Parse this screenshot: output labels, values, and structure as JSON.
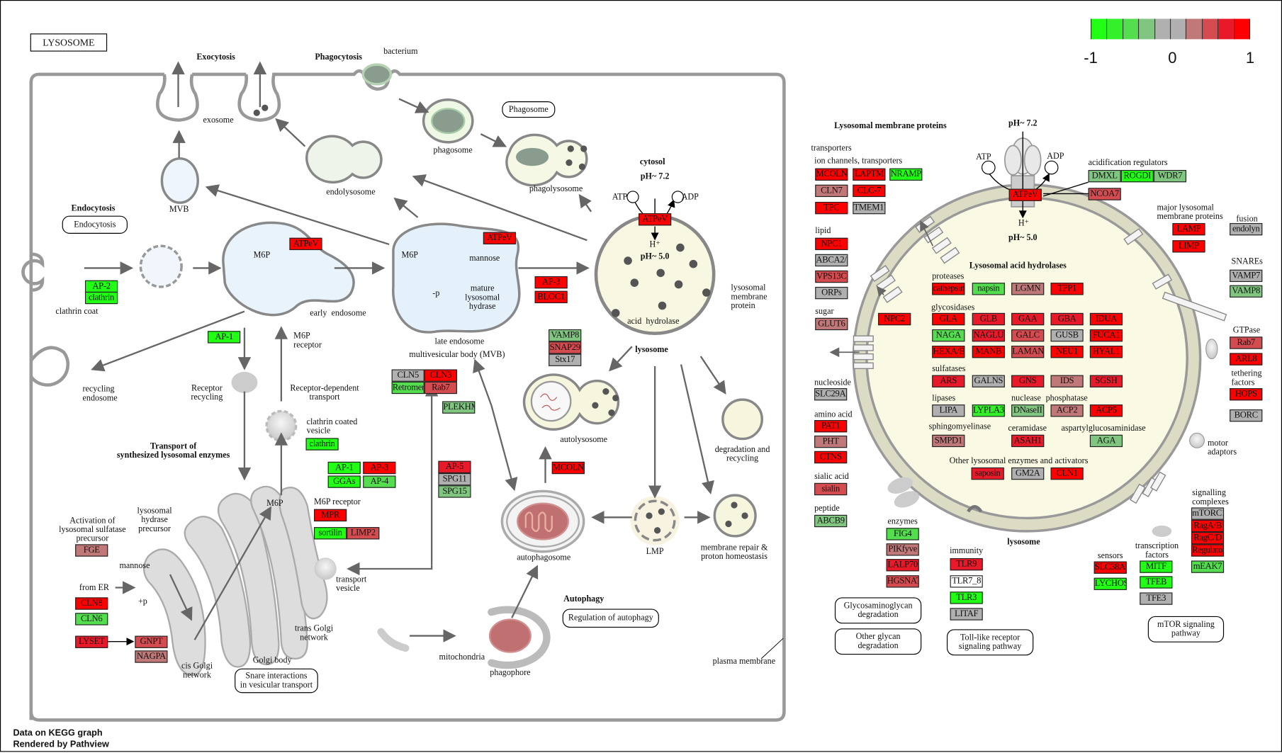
{
  "title": "LYSOSOME",
  "legend": {
    "ticks": [
      "-1",
      "0",
      "1"
    ],
    "colors": [
      "#20ff14",
      "#33f02a",
      "#55dd50",
      "#80c680",
      "#b0b0b0",
      "#b0b0b0",
      "#c07878",
      "#d44b50",
      "#e81a2a",
      "#ff0000"
    ]
  },
  "footer": [
    "Data on KEGG graph",
    "Rendered by Pathview"
  ],
  "pathway_links": [
    "Endocytosis",
    "Phagosome",
    "Regulation of autophagy",
    "Snare interactions\nin vesicular transport",
    "Glycosaminoglycan\ndegradation",
    "Other glycan\ndegradation",
    "Toll-like receptor\nsignaling pathway",
    "mTOR signaling\npathway"
  ],
  "genes": [
    {
      "label": "AP-2",
      "color": "#20ff14"
    },
    {
      "label": "clathrin",
      "color": "#20ff14"
    },
    {
      "label": "ATPeV",
      "color": "#ff0000"
    },
    {
      "label": "AP-1",
      "color": "#20ff14"
    },
    {
      "label": "ATPeV",
      "color": "#ff0000"
    },
    {
      "label": "AP-3",
      "color": "#ff0000"
    },
    {
      "label": "BLOC1",
      "color": "#ff0000"
    },
    {
      "label": "ATPeV",
      "color": "#ff0000"
    },
    {
      "label": "VAMP8",
      "color": "#80c680"
    },
    {
      "label": "SNAP29",
      "color": "#d44b50"
    },
    {
      "label": "Stx17",
      "color": "#b0b0b0"
    },
    {
      "label": "CLN5",
      "color": "#b0b0b0"
    },
    {
      "label": "CLN3",
      "color": "#ff0000"
    },
    {
      "label": "Retromer",
      "color": "#55dd50"
    },
    {
      "label": "Rab7",
      "color": "#d44b50"
    },
    {
      "label": "PLEKHM1",
      "color": "#80c680"
    },
    {
      "label": "clathrin",
      "color": "#20ff14"
    },
    {
      "label": "AP-1",
      "color": "#20ff14"
    },
    {
      "label": "AP-3",
      "color": "#ff0000"
    },
    {
      "label": "GGAs",
      "color": "#20ff14"
    },
    {
      "label": "AP-4",
      "color": "#55dd50"
    },
    {
      "label": "AP-5",
      "color": "#e81a2a"
    },
    {
      "label": "SPG11",
      "color": "#b0b0b0"
    },
    {
      "label": "SPG15",
      "color": "#80c680"
    },
    {
      "label": "MCOLN1",
      "color": "#ff0000"
    },
    {
      "label": "MPR",
      "color": "#ff0000"
    },
    {
      "label": "sortilin",
      "color": "#20ff14"
    },
    {
      "label": "LIMP2",
      "color": "#d44b50"
    },
    {
      "label": "FGE",
      "color": "#c07878"
    },
    {
      "label": "CLN8",
      "color": "#ff0000"
    },
    {
      "label": "CLN6",
      "color": "#55dd50"
    },
    {
      "label": "LYSET",
      "color": "#e81a2a"
    },
    {
      "label": "GNPT",
      "color": "#d44b50"
    },
    {
      "label": "NAGPA",
      "color": "#c07878"
    },
    {
      "label": "MCOLN",
      "color": "#ff0000"
    },
    {
      "label": "LAPTM",
      "color": "#ff0000"
    },
    {
      "label": "NRAMP",
      "color": "#20ff14"
    },
    {
      "label": "CLN7",
      "color": "#c07878"
    },
    {
      "label": "CLC-7",
      "color": "#ff0000"
    },
    {
      "label": "TPC",
      "color": "#ff0000"
    },
    {
      "label": "TMEM175",
      "color": "#b0b0b0"
    },
    {
      "label": "NPC1",
      "color": "#ff0000"
    },
    {
      "label": "ABCA2/5",
      "color": "#b0b0b0"
    },
    {
      "label": "VPS13C",
      "color": "#d44b50"
    },
    {
      "label": "ORPs",
      "color": "#b0b0b0"
    },
    {
      "label": "GLUT6",
      "color": "#c07878"
    },
    {
      "label": "NPC2",
      "color": "#ff0000"
    },
    {
      "label": "ATPeV",
      "color": "#ff0000"
    },
    {
      "label": "DMXL",
      "color": "#80c680"
    },
    {
      "label": "ROGDI",
      "color": "#20ff14"
    },
    {
      "label": "WDR7",
      "color": "#80c680"
    },
    {
      "label": "NCOA7",
      "color": "#d44b50"
    },
    {
      "label": "cathepsins",
      "color": "#ff0000"
    },
    {
      "label": "napsin",
      "color": "#55dd50"
    },
    {
      "label": "LGMN",
      "color": "#c07878"
    },
    {
      "label": "TPP1",
      "color": "#ff0000"
    },
    {
      "label": "GLA",
      "color": "#ff0000"
    },
    {
      "label": "GLB",
      "color": "#e81a2a"
    },
    {
      "label": "GAA",
      "color": "#e81a2a"
    },
    {
      "label": "GBA",
      "color": "#e81a2a"
    },
    {
      "label": "IDUA",
      "color": "#ff0000"
    },
    {
      "label": "NAGA",
      "color": "#55dd50"
    },
    {
      "label": "NAGLU",
      "color": "#e81a2a"
    },
    {
      "label": "GALC",
      "color": "#d44b50"
    },
    {
      "label": "GUSB",
      "color": "#b0b0b0"
    },
    {
      "label": "FUCA1",
      "color": "#ff0000"
    },
    {
      "label": "HEXA/B",
      "color": "#ff0000"
    },
    {
      "label": "MANB",
      "color": "#ff0000"
    },
    {
      "label": "LAMAN",
      "color": "#d44b50"
    },
    {
      "label": "NEU1",
      "color": "#ff0000"
    },
    {
      "label": "HYAL1",
      "color": "#ff0000"
    },
    {
      "label": "ARS",
      "color": "#e81a2a"
    },
    {
      "label": "GALNS",
      "color": "#b0b0b0"
    },
    {
      "label": "GNS",
      "color": "#e81a2a"
    },
    {
      "label": "IDS",
      "color": "#c07878"
    },
    {
      "label": "SGSH",
      "color": "#e81a2a"
    },
    {
      "label": "LIPA",
      "color": "#b0b0b0"
    },
    {
      "label": "LYPLA3",
      "color": "#33f02a"
    },
    {
      "label": "DNaseII",
      "color": "#80c680"
    },
    {
      "label": "ACP2",
      "color": "#c07878"
    },
    {
      "label": "ACP5",
      "color": "#ff0000"
    },
    {
      "label": "SMPD1",
      "color": "#c07878"
    },
    {
      "label": "ASAH1",
      "color": "#e81a2a"
    },
    {
      "label": "AGA",
      "color": "#80c680"
    },
    {
      "label": "saposin",
      "color": "#e81a2a"
    },
    {
      "label": "GM2A",
      "color": "#b0b0b0"
    },
    {
      "label": "CLN1",
      "color": "#ff0000"
    },
    {
      "label": "SLC29A3",
      "color": "#b0b0b0"
    },
    {
      "label": "PAT1",
      "color": "#ff0000"
    },
    {
      "label": "PHT",
      "color": "#c07878"
    },
    {
      "label": "CTNS",
      "color": "#ff0000"
    },
    {
      "label": "sialin",
      "color": "#d44b50"
    },
    {
      "label": "ABCB9",
      "color": "#80c680"
    },
    {
      "label": "FIG4",
      "color": "#55dd50"
    },
    {
      "label": "PIKfyve",
      "color": "#c07878"
    },
    {
      "label": "LALP70",
      "color": "#e81a2a"
    },
    {
      "label": "HGSNAT",
      "color": "#d44b50"
    },
    {
      "label": "TLR9",
      "color": "#e81a2a"
    },
    {
      "label": "TLR7_8",
      "color": "#ffffff"
    },
    {
      "label": "TLR3",
      "color": "#20ff14"
    },
    {
      "label": "LITAF",
      "color": "#b0b0b0"
    },
    {
      "label": "SLC38A9",
      "color": "#ff0000"
    },
    {
      "label": "LYCHOS",
      "color": "#20ff14"
    },
    {
      "label": "MITF",
      "color": "#20ff14"
    },
    {
      "label": "TFEB",
      "color": "#20ff14"
    },
    {
      "label": "TFE3",
      "color": "#b0b0b0"
    },
    {
      "label": "mTORC1",
      "color": "#b0b0b0"
    },
    {
      "label": "RagA/B",
      "color": "#ff0000"
    },
    {
      "label": "RagC/D",
      "color": "#ff0000"
    },
    {
      "label": "Regulator",
      "color": "#ff0000"
    },
    {
      "label": "mEAK7",
      "color": "#55dd50"
    },
    {
      "label": "LAMP",
      "color": "#ff0000"
    },
    {
      "label": "LIMP",
      "color": "#ff0000"
    },
    {
      "label": "endolyn",
      "color": "#b0b0b0"
    },
    {
      "label": "VAMP7",
      "color": "#b0b0b0"
    },
    {
      "label": "VAMP8",
      "color": "#80c680"
    },
    {
      "label": "Rab7",
      "color": "#d44b50"
    },
    {
      "label": "ARL8",
      "color": "#ff0000"
    },
    {
      "label": "HOPS",
      "color": "#ff0000"
    },
    {
      "label": "BORC",
      "color": "#b0b0b0"
    }
  ],
  "labels": [
    "Exocytosis",
    "Phagocytosis",
    "bacterium",
    "exosome",
    "MVB",
    "endolysosome",
    "phagosome",
    "phagolysosome",
    "cytosol",
    "pH~ 7.2",
    "ATP",
    "ADP",
    "H⁺",
    "pH~ 5.0",
    "Endocytosis",
    "clathrin coat",
    "M6P",
    "early  endosome",
    "M6P\nreceptor",
    "M6P",
    "mannose",
    "mature\nlysosomal\nhydrase",
    "-p",
    "late endosome",
    "multivesicular body (MVB)",
    "acid  hydrolase",
    "lysosomal\nmembrane\nprotein",
    "lysosome",
    "recycling\nendosome",
    "Receptor\nrecycling",
    "Receptor-dependent\ntransport",
    "clathrin coated\nvesicle",
    "Transport of\nsynthesized lysosomal enzymes",
    "autolysosome",
    "degradation and\nrecycling",
    "M6P",
    "M6P receptor",
    "Activation of\nlysosomal sulfatase\nprecursor",
    "lysosomal\nhydrase\nprecursor",
    "mannose",
    "from ER",
    "+p",
    "transport\nvesicle",
    "trans Golgi\nnetwork",
    "cis Golgi\nnetwork",
    "Golgi body",
    "autophagosome",
    "LMP",
    "membrane repair &\nproton homeostasis",
    "Autophagy",
    "mitochondria",
    "phagophore",
    "plasma membrane",
    "Lysosomal membrane proteins",
    "transporters",
    "ion channels, transporters",
    "lipid",
    "sugar",
    "nucleoside",
    "amino acid",
    "sialic acid",
    "peptide",
    "pH~ 7.2",
    "ATP",
    "ADP",
    "H⁺",
    "pH~ 5.0",
    "acidification regulators",
    "major lysosomal\nmembrane proteins",
    "fusion",
    "SNAREs",
    "GTPase",
    "tethering\nfactors",
    "motor\nadaptors",
    "signalling\ncomplexes",
    "Lysosomal acid hydrolases",
    "proteases",
    "glycosidases",
    "sulfatases",
    "lipases",
    "nuclease",
    "phosphatase",
    "sphingomyelinase",
    "ceramidase",
    "aspartylglucosaminidase",
    "Other lysosomal enzymes and activators",
    "enzymes",
    "lysosome",
    "immunity",
    "sensors",
    "transcription\nfactors"
  ]
}
